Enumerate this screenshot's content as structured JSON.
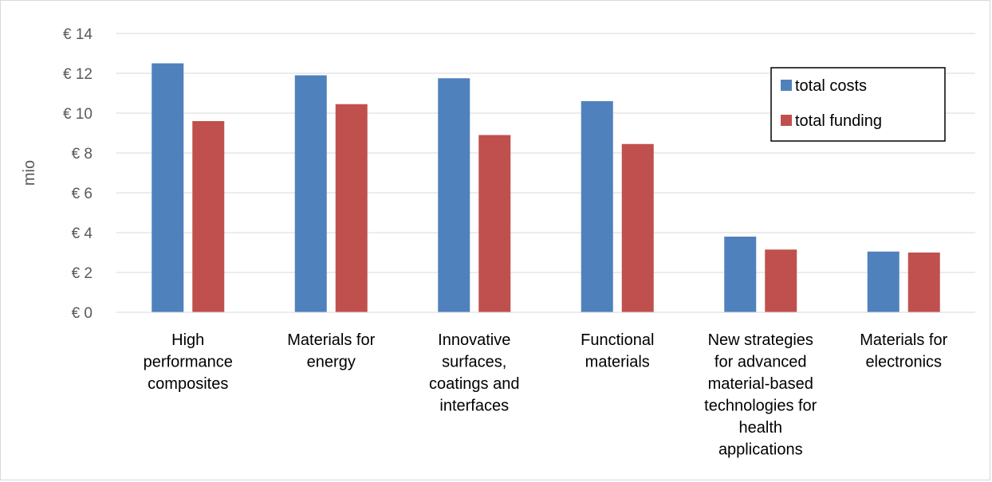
{
  "chart_data": {
    "type": "bar",
    "ylabel": "mio",
    "ylim": [
      0,
      14
    ],
    "ytick_values": [
      0,
      2,
      4,
      6,
      8,
      10,
      12,
      14
    ],
    "ytick_labels": [
      "€ 0",
      "€ 2",
      "€ 4",
      "€ 6",
      "€ 8",
      "€ 10",
      "€ 12",
      "€ 14"
    ],
    "grid": true,
    "legend_position": "top-right",
    "categories": [
      "High performance composites",
      "Materials for energy",
      "Innovative surfaces, coatings and interfaces",
      "Functional materials",
      "New strategies for advanced material-based technologies for health applications",
      "Materials for electronics"
    ],
    "category_lines": [
      [
        "High",
        "performance",
        "composites"
      ],
      [
        "Materials for",
        "energy"
      ],
      [
        "Innovative",
        "surfaces,",
        "coatings and",
        "interfaces"
      ],
      [
        "Functional",
        "materials"
      ],
      [
        "New strategies",
        "for advanced",
        "material-based",
        "technologies for",
        "health",
        "applications"
      ],
      [
        "Materials for",
        "electronics"
      ]
    ],
    "series": [
      {
        "name": "total costs",
        "color": "#4f81bd",
        "values": [
          12.5,
          11.9,
          11.75,
          10.6,
          3.8,
          3.05
        ]
      },
      {
        "name": "total funding",
        "color": "#c0504d",
        "values": [
          9.6,
          10.45,
          8.9,
          8.45,
          3.15,
          3.0
        ]
      }
    ]
  }
}
